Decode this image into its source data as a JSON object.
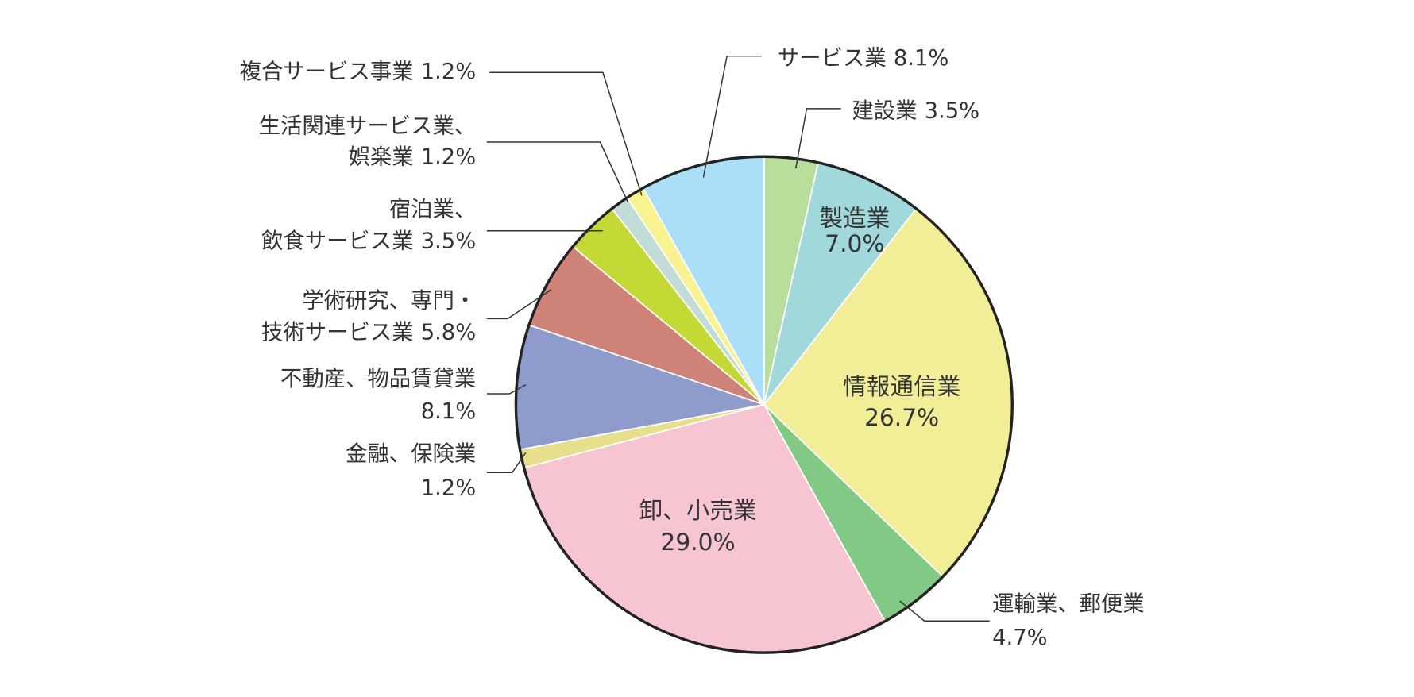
{
  "chart_data": {
    "type": "pie",
    "categories": [
      [
        "建設業"
      ],
      [
        "製造業"
      ],
      [
        "情報通信業"
      ],
      [
        "運輸業、郵便業"
      ],
      [
        "卸、小売業"
      ],
      [
        "金融、保険業"
      ],
      [
        "不動産、物品賃貸業"
      ],
      [
        "学術研究、専門・",
        "技術サービス業"
      ],
      [
        "宿泊業、",
        "飲食サービス業"
      ],
      [
        "生活関連サービス業、",
        "娯楽業"
      ],
      [
        "複合サービス事業"
      ],
      [
        "サービス業"
      ]
    ],
    "values": [
      3.5,
      7.0,
      26.7,
      4.7,
      29.0,
      1.2,
      8.1,
      5.8,
      3.5,
      1.2,
      1.2,
      8.1
    ],
    "value_labels": [
      "3.5%",
      "7.0%",
      "26.7%",
      "4.7%",
      "29.0%",
      "1.2%",
      "8.1%",
      "5.8%",
      "3.5%",
      "1.2%",
      "1.2%",
      "8.1%"
    ],
    "colors": [
      "#b9dd9a",
      "#a0d8dc",
      "#f2ee98",
      "#82c986",
      "#f7c4d1",
      "#e6e08c",
      "#8f9bcb",
      "#cf8378",
      "#c4d935",
      "#c2dcd8",
      "#f8f390",
      "#aadff7"
    ]
  }
}
